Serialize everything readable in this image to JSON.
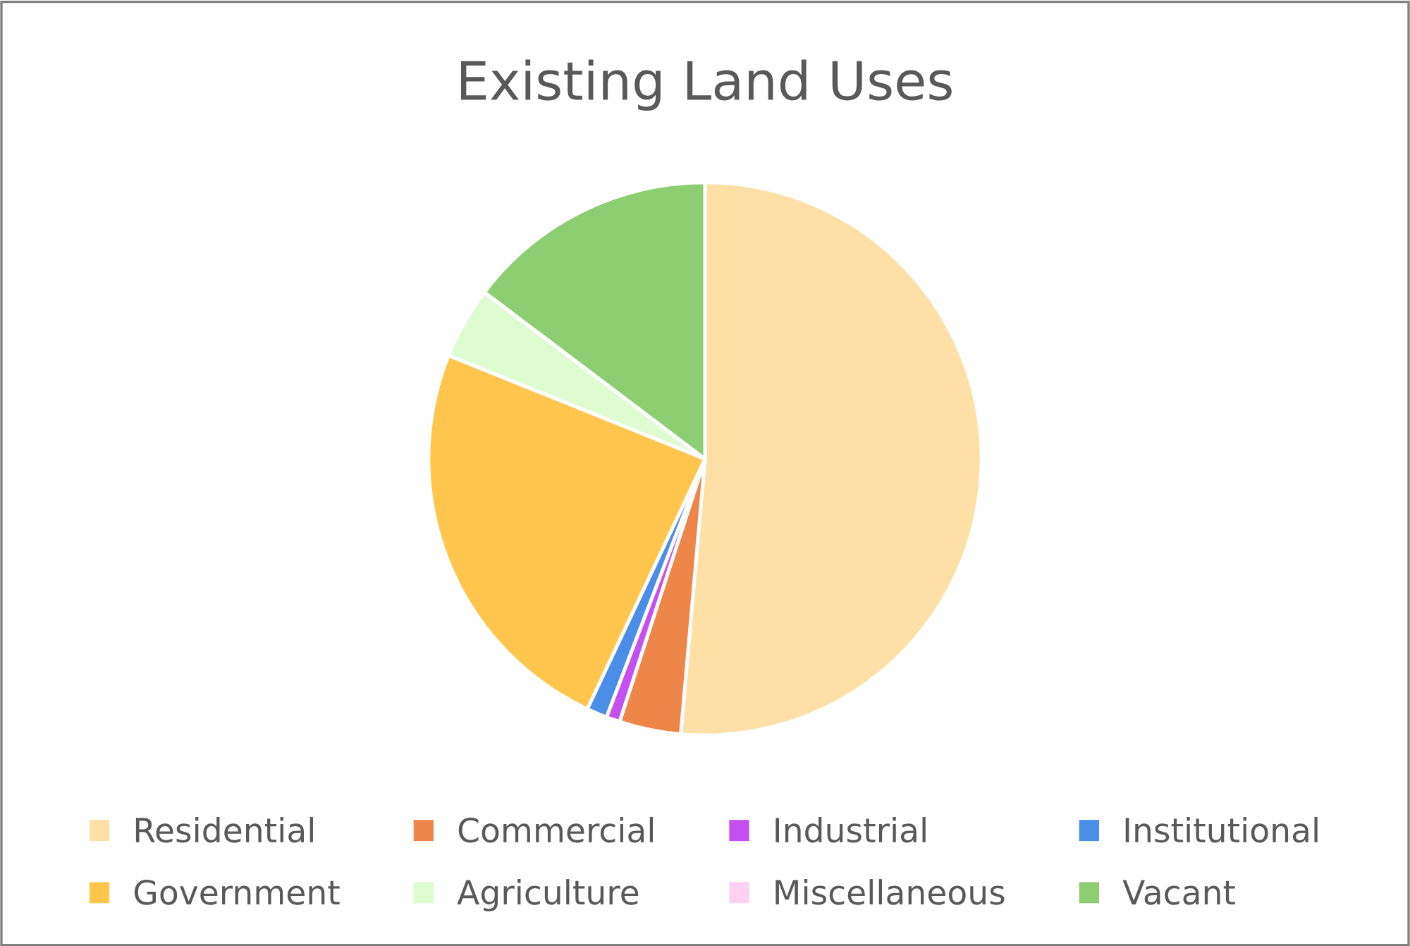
{
  "chart_data": {
    "type": "pie",
    "title": "Existing Land Uses",
    "categories": [
      "Residential",
      "Commercial",
      "Industrial",
      "Institutional",
      "Government",
      "Agriculture",
      "Miscellaneous",
      "Vacant"
    ],
    "values": [
      51.4,
      3.6,
      0.8,
      1.2,
      24.1,
      4.2,
      null,
      14.7
    ],
    "colors": [
      "#fee0a6",
      "#ee8649",
      "#c550f0",
      "#4a8ee8",
      "#ffc54d",
      "#ddfdd0",
      "#ffd0f0",
      "#8dce72"
    ],
    "legend": "bottom"
  }
}
